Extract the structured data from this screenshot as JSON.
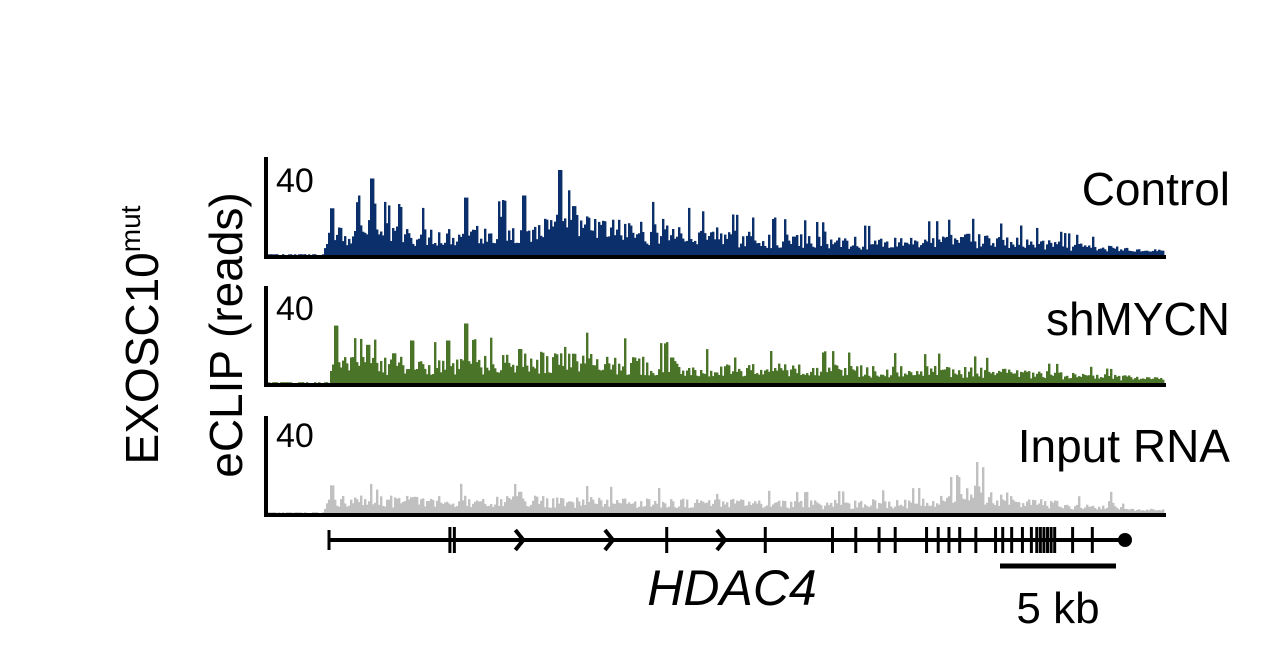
{
  "ylabel": {
    "line1": "EXOSC10",
    "superscript": "mut",
    "line2": "eCLIP (reads)"
  },
  "gene_label": "HDAC4",
  "scale_bar": {
    "label": "5 kb",
    "length_kb": 5
  },
  "colors": {
    "control": "#0b2f6b",
    "shmycn": "#4a7427",
    "input": "#c0c0c0",
    "axis": "#000000"
  },
  "chart_data": {
    "type": "area",
    "y_max": 40,
    "grid": false,
    "tracks": [
      {
        "name": "Control",
        "ymax_label": "40",
        "color": "#0b2f6b",
        "baseline": 3,
        "peaks": [
          {
            "pos": 0.07,
            "height": 22
          },
          {
            "pos": 0.1,
            "height": 28
          },
          {
            "pos": 0.115,
            "height": 36
          },
          {
            "pos": 0.13,
            "height": 25
          },
          {
            "pos": 0.145,
            "height": 24
          },
          {
            "pos": 0.22,
            "height": 27
          },
          {
            "pos": 0.26,
            "height": 18
          },
          {
            "pos": 0.285,
            "height": 28
          },
          {
            "pos": 0.325,
            "height": 40
          },
          {
            "pos": 0.34,
            "height": 23
          },
          {
            "pos": 0.44,
            "height": 17
          },
          {
            "pos": 0.5,
            "height": 13
          },
          {
            "pos": 0.62,
            "height": 11
          },
          {
            "pos": 0.78,
            "height": 10
          },
          {
            "pos": 0.8,
            "height": 9
          }
        ],
        "envelope": [
          {
            "pos": 0.07,
            "level": 13
          },
          {
            "pos": 0.2,
            "level": 11
          },
          {
            "pos": 0.34,
            "level": 16
          },
          {
            "pos": 0.5,
            "level": 10
          },
          {
            "pos": 0.67,
            "level": 7
          },
          {
            "pos": 0.78,
            "level": 9
          },
          {
            "pos": 0.96,
            "level": 3
          }
        ]
      },
      {
        "name": "shMYCN",
        "ymax_label": "40",
        "color": "#4a7427",
        "baseline": 2,
        "peaks": [
          {
            "pos": 0.075,
            "height": 27
          },
          {
            "pos": 0.11,
            "height": 18
          },
          {
            "pos": 0.14,
            "height": 14
          },
          {
            "pos": 0.2,
            "height": 20
          },
          {
            "pos": 0.22,
            "height": 28
          },
          {
            "pos": 0.23,
            "height": 18
          },
          {
            "pos": 0.28,
            "height": 16
          },
          {
            "pos": 0.33,
            "height": 17
          },
          {
            "pos": 0.45,
            "height": 12
          },
          {
            "pos": 0.52,
            "height": 12
          },
          {
            "pos": 0.63,
            "height": 15
          },
          {
            "pos": 0.88,
            "height": 9
          }
        ],
        "envelope": [
          {
            "pos": 0.075,
            "level": 11
          },
          {
            "pos": 0.2,
            "level": 10
          },
          {
            "pos": 0.33,
            "level": 13
          },
          {
            "pos": 0.5,
            "level": 8
          },
          {
            "pos": 0.75,
            "level": 7
          },
          {
            "pos": 0.96,
            "level": 3
          }
        ]
      },
      {
        "name": "Input RNA",
        "ymax_label": "40",
        "color": "#c0c0c0",
        "baseline": 2,
        "peaks": [
          {
            "pos": 0.07,
            "height": 13
          },
          {
            "pos": 0.12,
            "height": 11
          },
          {
            "pos": 0.28,
            "height": 10
          },
          {
            "pos": 0.5,
            "height": 9
          },
          {
            "pos": 0.77,
            "height": 17
          },
          {
            "pos": 0.79,
            "height": 24
          },
          {
            "pos": 0.94,
            "height": 10
          }
        ],
        "envelope": [
          {
            "pos": 0.07,
            "level": 7
          },
          {
            "pos": 0.3,
            "level": 7
          },
          {
            "pos": 0.6,
            "level": 5
          },
          {
            "pos": 0.74,
            "level": 6
          },
          {
            "pos": 0.79,
            "level": 12
          },
          {
            "pos": 0.85,
            "level": 6
          },
          {
            "pos": 0.96,
            "level": 2
          }
        ]
      }
    ],
    "gene_model": {
      "name": "HDAC4",
      "strand": "+",
      "start_frac": 0.075,
      "end_frac": 0.97,
      "exons": [
        0.203,
        0.208,
        0.445,
        0.555,
        0.63,
        0.656,
        0.682,
        0.7,
        0.735,
        0.748,
        0.76,
        0.772,
        0.79,
        0.812,
        0.82,
        0.83,
        0.842,
        0.852,
        0.858,
        0.862,
        0.866,
        0.87,
        0.874,
        0.878,
        0.898,
        0.92
      ],
      "arrows": [
        0.285,
        0.385,
        0.51
      ]
    }
  }
}
